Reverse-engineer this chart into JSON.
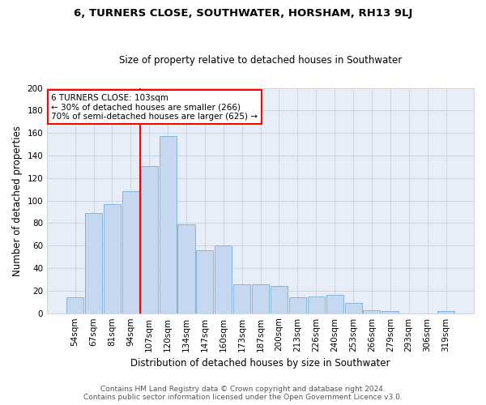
{
  "title": "6, TURNERS CLOSE, SOUTHWATER, HORSHAM, RH13 9LJ",
  "subtitle": "Size of property relative to detached houses in Southwater",
  "xlabel": "Distribution of detached houses by size in Southwater",
  "ylabel": "Number of detached properties",
  "bar_labels": [
    "54sqm",
    "67sqm",
    "81sqm",
    "94sqm",
    "107sqm",
    "120sqm",
    "134sqm",
    "147sqm",
    "160sqm",
    "173sqm",
    "187sqm",
    "200sqm",
    "213sqm",
    "226sqm",
    "240sqm",
    "253sqm",
    "266sqm",
    "279sqm",
    "293sqm",
    "306sqm",
    "319sqm"
  ],
  "bar_values": [
    14,
    89,
    97,
    108,
    131,
    157,
    79,
    56,
    60,
    26,
    26,
    24,
    14,
    15,
    16,
    9,
    3,
    2,
    0,
    0,
    2
  ],
  "bar_color": "#c5d8f0",
  "bar_edgecolor": "#7aadd4",
  "grid_color": "#c8d4e8",
  "background_color": "#e8eef8",
  "vline_color": "red",
  "annotation_line1": "6 TURNERS CLOSE: 103sqm",
  "annotation_line2": "← 30% of detached houses are smaller (266)",
  "annotation_line3": "70% of semi-detached houses are larger (625) →",
  "annotation_box_edgecolor": "red",
  "annotation_box_facecolor": "white",
  "ylim": [
    0,
    200
  ],
  "yticks": [
    0,
    20,
    40,
    60,
    80,
    100,
    120,
    140,
    160,
    180,
    200
  ],
  "footer_line1": "Contains HM Land Registry data © Crown copyright and database right 2024.",
  "footer_line2": "Contains public sector information licensed under the Open Government Licence v3.0.",
  "title_fontsize": 9.5,
  "subtitle_fontsize": 8.5,
  "xlabel_fontsize": 8.5,
  "ylabel_fontsize": 8.5,
  "tick_fontsize": 7.5,
  "annotation_fontsize": 7.5,
  "footer_fontsize": 6.5
}
